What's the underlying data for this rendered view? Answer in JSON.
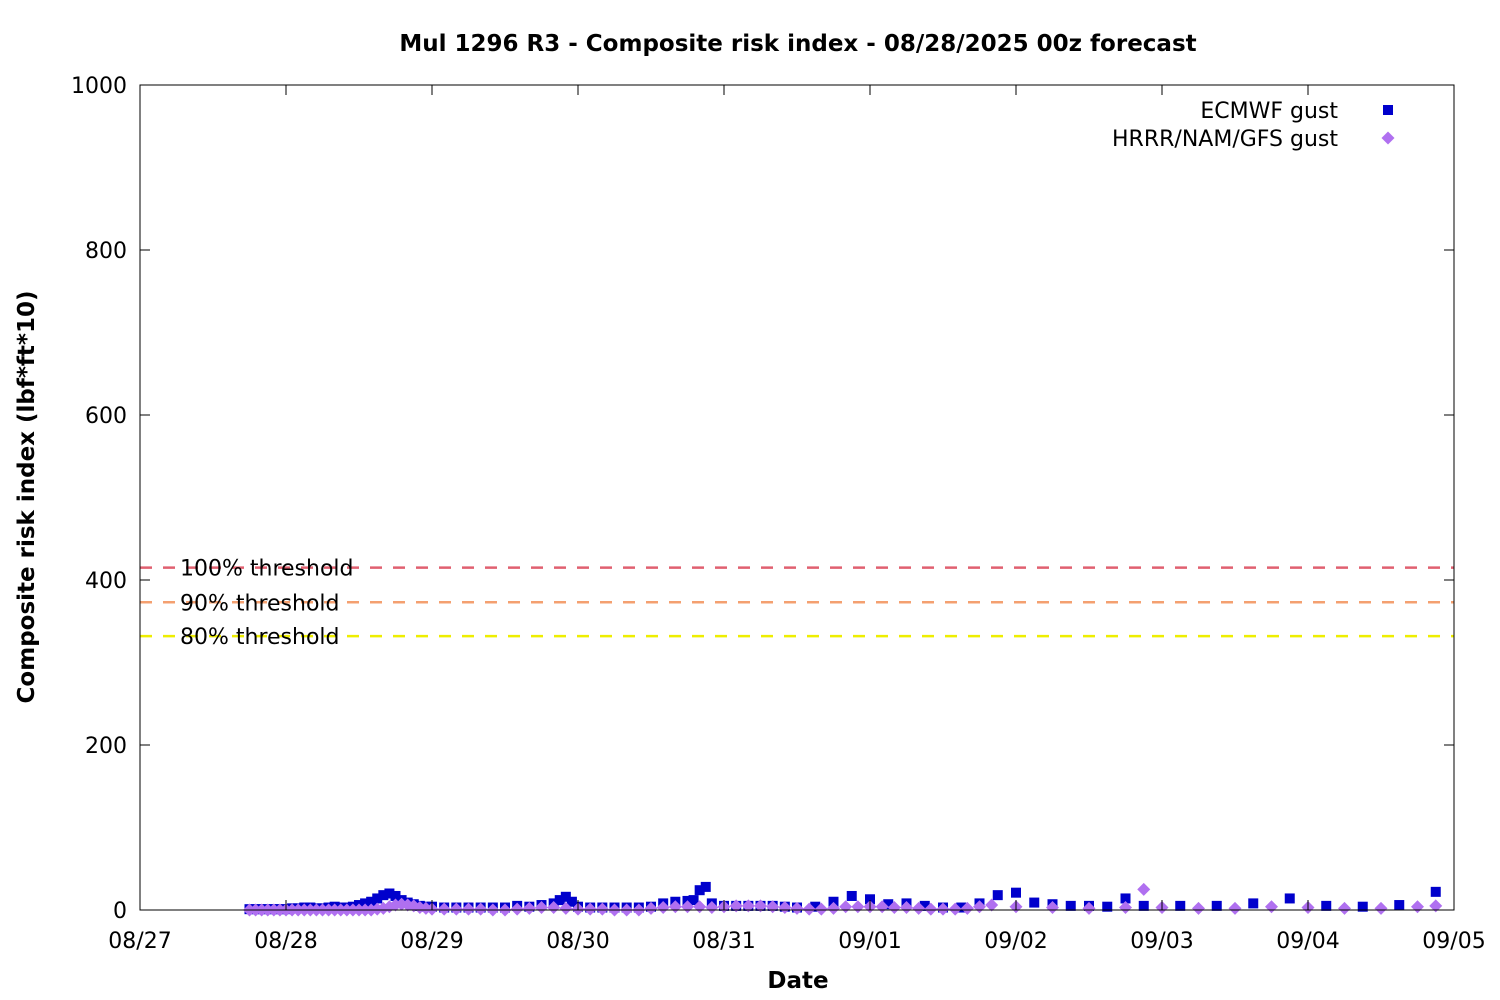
{
  "chart_data": {
    "type": "scatter",
    "title": "Mul 1296 R3 - Composite risk index - 08/28/2025 00z forecast",
    "xlabel": "Date",
    "ylabel": "Composite risk index (lbf*ft*10)",
    "xlim": [
      "2025-08-27T00:00",
      "2025-09-05T00:00"
    ],
    "ylim": [
      0,
      1000
    ],
    "x_ticks": [
      "08/27",
      "08/28",
      "08/29",
      "08/30",
      "08/31",
      "09/01",
      "09/02",
      "09/03",
      "09/04",
      "09/05"
    ],
    "y_ticks": [
      "0",
      "200",
      "400",
      "600",
      "800",
      "1000"
    ],
    "grid": false,
    "legend_position": "top-right",
    "thresholds": [
      {
        "label": "100% threshold",
        "value": 415,
        "color": "#e06070"
      },
      {
        "label": "90% threshold",
        "value": 373,
        "color": "#f4a070"
      },
      {
        "label": "80% threshold",
        "value": 332,
        "color": "#eeee00"
      }
    ],
    "series": [
      {
        "name": "ECMWF gust",
        "marker": "square",
        "color": "#0000cc",
        "points": [
          [
            "2025-08-27T18:00",
            1
          ],
          [
            "2025-08-27T19:00",
            1
          ],
          [
            "2025-08-27T20:00",
            1
          ],
          [
            "2025-08-27T21:00",
            1
          ],
          [
            "2025-08-27T22:00",
            1
          ],
          [
            "2025-08-27T23:00",
            1
          ],
          [
            "2025-08-28T00:00",
            1
          ],
          [
            "2025-08-28T01:00",
            2
          ],
          [
            "2025-08-28T02:00",
            2
          ],
          [
            "2025-08-28T03:00",
            3
          ],
          [
            "2025-08-28T04:00",
            3
          ],
          [
            "2025-08-28T05:00",
            2
          ],
          [
            "2025-08-28T06:00",
            2
          ],
          [
            "2025-08-28T07:00",
            3
          ],
          [
            "2025-08-28T08:00",
            4
          ],
          [
            "2025-08-28T09:00",
            3
          ],
          [
            "2025-08-28T10:00",
            3
          ],
          [
            "2025-08-28T11:00",
            4
          ],
          [
            "2025-08-28T12:00",
            6
          ],
          [
            "2025-08-28T13:00",
            8
          ],
          [
            "2025-08-28T14:00",
            10
          ],
          [
            "2025-08-28T15:00",
            14
          ],
          [
            "2025-08-28T16:00",
            18
          ],
          [
            "2025-08-28T17:00",
            20
          ],
          [
            "2025-08-28T18:00",
            17
          ],
          [
            "2025-08-28T19:00",
            12
          ],
          [
            "2025-08-28T20:00",
            9
          ],
          [
            "2025-08-28T21:00",
            7
          ],
          [
            "2025-08-28T22:00",
            5
          ],
          [
            "2025-08-28T23:00",
            4
          ],
          [
            "2025-08-29T00:00",
            4
          ],
          [
            "2025-08-29T02:00",
            3
          ],
          [
            "2025-08-29T04:00",
            3
          ],
          [
            "2025-08-29T06:00",
            3
          ],
          [
            "2025-08-29T08:00",
            3
          ],
          [
            "2025-08-29T10:00",
            3
          ],
          [
            "2025-08-29T12:00",
            3
          ],
          [
            "2025-08-29T14:00",
            5
          ],
          [
            "2025-08-29T16:00",
            4
          ],
          [
            "2025-08-29T18:00",
            6
          ],
          [
            "2025-08-29T20:00",
            8
          ],
          [
            "2025-08-29T21:00",
            12
          ],
          [
            "2025-08-29T22:00",
            16
          ],
          [
            "2025-08-29T23:00",
            10
          ],
          [
            "2025-08-30T00:00",
            4
          ],
          [
            "2025-08-30T02:00",
            3
          ],
          [
            "2025-08-30T04:00",
            3
          ],
          [
            "2025-08-30T06:00",
            3
          ],
          [
            "2025-08-30T08:00",
            3
          ],
          [
            "2025-08-30T10:00",
            3
          ],
          [
            "2025-08-30T12:00",
            4
          ],
          [
            "2025-08-30T14:00",
            8
          ],
          [
            "2025-08-30T16:00",
            10
          ],
          [
            "2025-08-30T18:00",
            11
          ],
          [
            "2025-08-30T19:00",
            12
          ],
          [
            "2025-08-30T20:00",
            24
          ],
          [
            "2025-08-30T21:00",
            28
          ],
          [
            "2025-08-30T22:00",
            8
          ],
          [
            "2025-08-31T00:00",
            5
          ],
          [
            "2025-08-31T02:00",
            5
          ],
          [
            "2025-08-31T04:00",
            5
          ],
          [
            "2025-08-31T06:00",
            5
          ],
          [
            "2025-08-31T08:00",
            5
          ],
          [
            "2025-08-31T10:00",
            4
          ],
          [
            "2025-08-31T12:00",
            3
          ],
          [
            "2025-08-31T15:00",
            4
          ],
          [
            "2025-08-31T18:00",
            10
          ],
          [
            "2025-08-31T21:00",
            17
          ],
          [
            "2025-09-01T00:00",
            13
          ],
          [
            "2025-09-01T03:00",
            7
          ],
          [
            "2025-09-01T06:00",
            8
          ],
          [
            "2025-09-01T09:00",
            5
          ],
          [
            "2025-09-01T12:00",
            3
          ],
          [
            "2025-09-01T15:00",
            3
          ],
          [
            "2025-09-01T18:00",
            8
          ],
          [
            "2025-09-01T21:00",
            18
          ],
          [
            "2025-09-02T00:00",
            21
          ],
          [
            "2025-09-02T03:00",
            9
          ],
          [
            "2025-09-02T06:00",
            7
          ],
          [
            "2025-09-02T09:00",
            5
          ],
          [
            "2025-09-02T12:00",
            5
          ],
          [
            "2025-09-02T15:00",
            4
          ],
          [
            "2025-09-02T18:00",
            14
          ],
          [
            "2025-09-02T21:00",
            5
          ],
          [
            "2025-09-03T03:00",
            5
          ],
          [
            "2025-09-03T09:00",
            5
          ],
          [
            "2025-09-03T15:00",
            8
          ],
          [
            "2025-09-03T21:00",
            14
          ],
          [
            "2025-09-04T03:00",
            5
          ],
          [
            "2025-09-04T09:00",
            4
          ],
          [
            "2025-09-04T15:00",
            6
          ],
          [
            "2025-09-04T21:00",
            22
          ]
        ]
      },
      {
        "name": "HRRR/NAM/GFS gust",
        "marker": "diamond",
        "color": "#b070f0",
        "points": [
          [
            "2025-08-27T18:00",
            0
          ],
          [
            "2025-08-27T19:00",
            0
          ],
          [
            "2025-08-27T20:00",
            0
          ],
          [
            "2025-08-27T21:00",
            0
          ],
          [
            "2025-08-27T22:00",
            0
          ],
          [
            "2025-08-27T23:00",
            0
          ],
          [
            "2025-08-28T00:00",
            0
          ],
          [
            "2025-08-28T01:00",
            0
          ],
          [
            "2025-08-28T02:00",
            0
          ],
          [
            "2025-08-28T03:00",
            0
          ],
          [
            "2025-08-28T04:00",
            0
          ],
          [
            "2025-08-28T05:00",
            0
          ],
          [
            "2025-08-28T06:00",
            0
          ],
          [
            "2025-08-28T07:00",
            0
          ],
          [
            "2025-08-28T08:00",
            0
          ],
          [
            "2025-08-28T09:00",
            0
          ],
          [
            "2025-08-28T10:00",
            0
          ],
          [
            "2025-08-28T11:00",
            0
          ],
          [
            "2025-08-28T12:00",
            0
          ],
          [
            "2025-08-28T13:00",
            0
          ],
          [
            "2025-08-28T14:00",
            0
          ],
          [
            "2025-08-28T15:00",
            1
          ],
          [
            "2025-08-28T16:00",
            2
          ],
          [
            "2025-08-28T17:00",
            4
          ],
          [
            "2025-08-28T18:00",
            6
          ],
          [
            "2025-08-28T19:00",
            7
          ],
          [
            "2025-08-28T20:00",
            6
          ],
          [
            "2025-08-28T21:00",
            5
          ],
          [
            "2025-08-28T22:00",
            3
          ],
          [
            "2025-08-28T23:00",
            2
          ],
          [
            "2025-08-29T00:00",
            1
          ],
          [
            "2025-08-29T02:00",
            1
          ],
          [
            "2025-08-29T04:00",
            1
          ],
          [
            "2025-08-29T06:00",
            1
          ],
          [
            "2025-08-29T08:00",
            1
          ],
          [
            "2025-08-29T10:00",
            0
          ],
          [
            "2025-08-29T12:00",
            0
          ],
          [
            "2025-08-29T14:00",
            1
          ],
          [
            "2025-08-29T16:00",
            2
          ],
          [
            "2025-08-29T18:00",
            3
          ],
          [
            "2025-08-29T20:00",
            3
          ],
          [
            "2025-08-29T22:00",
            2
          ],
          [
            "2025-08-30T00:00",
            1
          ],
          [
            "2025-08-30T02:00",
            1
          ],
          [
            "2025-08-30T04:00",
            1
          ],
          [
            "2025-08-30T06:00",
            0
          ],
          [
            "2025-08-30T08:00",
            0
          ],
          [
            "2025-08-30T10:00",
            0
          ],
          [
            "2025-08-30T12:00",
            2
          ],
          [
            "2025-08-30T14:00",
            3
          ],
          [
            "2025-08-30T16:00",
            4
          ],
          [
            "2025-08-30T18:00",
            4
          ],
          [
            "2025-08-30T20:00",
            4
          ],
          [
            "2025-08-30T22:00",
            3
          ],
          [
            "2025-08-31T00:00",
            4
          ],
          [
            "2025-08-31T02:00",
            5
          ],
          [
            "2025-08-31T04:00",
            5
          ],
          [
            "2025-08-31T06:00",
            5
          ],
          [
            "2025-08-31T08:00",
            4
          ],
          [
            "2025-08-31T10:00",
            3
          ],
          [
            "2025-08-31T12:00",
            2
          ],
          [
            "2025-08-31T14:00",
            1
          ],
          [
            "2025-08-31T16:00",
            1
          ],
          [
            "2025-08-31T18:00",
            2
          ],
          [
            "2025-08-31T20:00",
            4
          ],
          [
            "2025-08-31T22:00",
            4
          ],
          [
            "2025-09-01T00:00",
            4
          ],
          [
            "2025-09-01T02:00",
            4
          ],
          [
            "2025-09-01T04:00",
            3
          ],
          [
            "2025-09-01T06:00",
            3
          ],
          [
            "2025-09-01T08:00",
            2
          ],
          [
            "2025-09-01T10:00",
            1
          ],
          [
            "2025-09-01T12:00",
            1
          ],
          [
            "2025-09-01T14:00",
            1
          ],
          [
            "2025-09-01T16:00",
            2
          ],
          [
            "2025-09-01T18:00",
            4
          ],
          [
            "2025-09-01T20:00",
            6
          ],
          [
            "2025-09-02T00:00",
            4
          ],
          [
            "2025-09-02T06:00",
            3
          ],
          [
            "2025-09-02T12:00",
            2
          ],
          [
            "2025-09-02T18:00",
            3
          ],
          [
            "2025-09-02T21:00",
            25
          ],
          [
            "2025-09-03T00:00",
            3
          ],
          [
            "2025-09-03T06:00",
            2
          ],
          [
            "2025-09-03T12:00",
            2
          ],
          [
            "2025-09-03T18:00",
            4
          ],
          [
            "2025-09-04T00:00",
            3
          ],
          [
            "2025-09-04T06:00",
            2
          ],
          [
            "2025-09-04T12:00",
            2
          ],
          [
            "2025-09-04T18:00",
            4
          ],
          [
            "2025-09-04T21:00",
            5
          ]
        ]
      }
    ]
  }
}
